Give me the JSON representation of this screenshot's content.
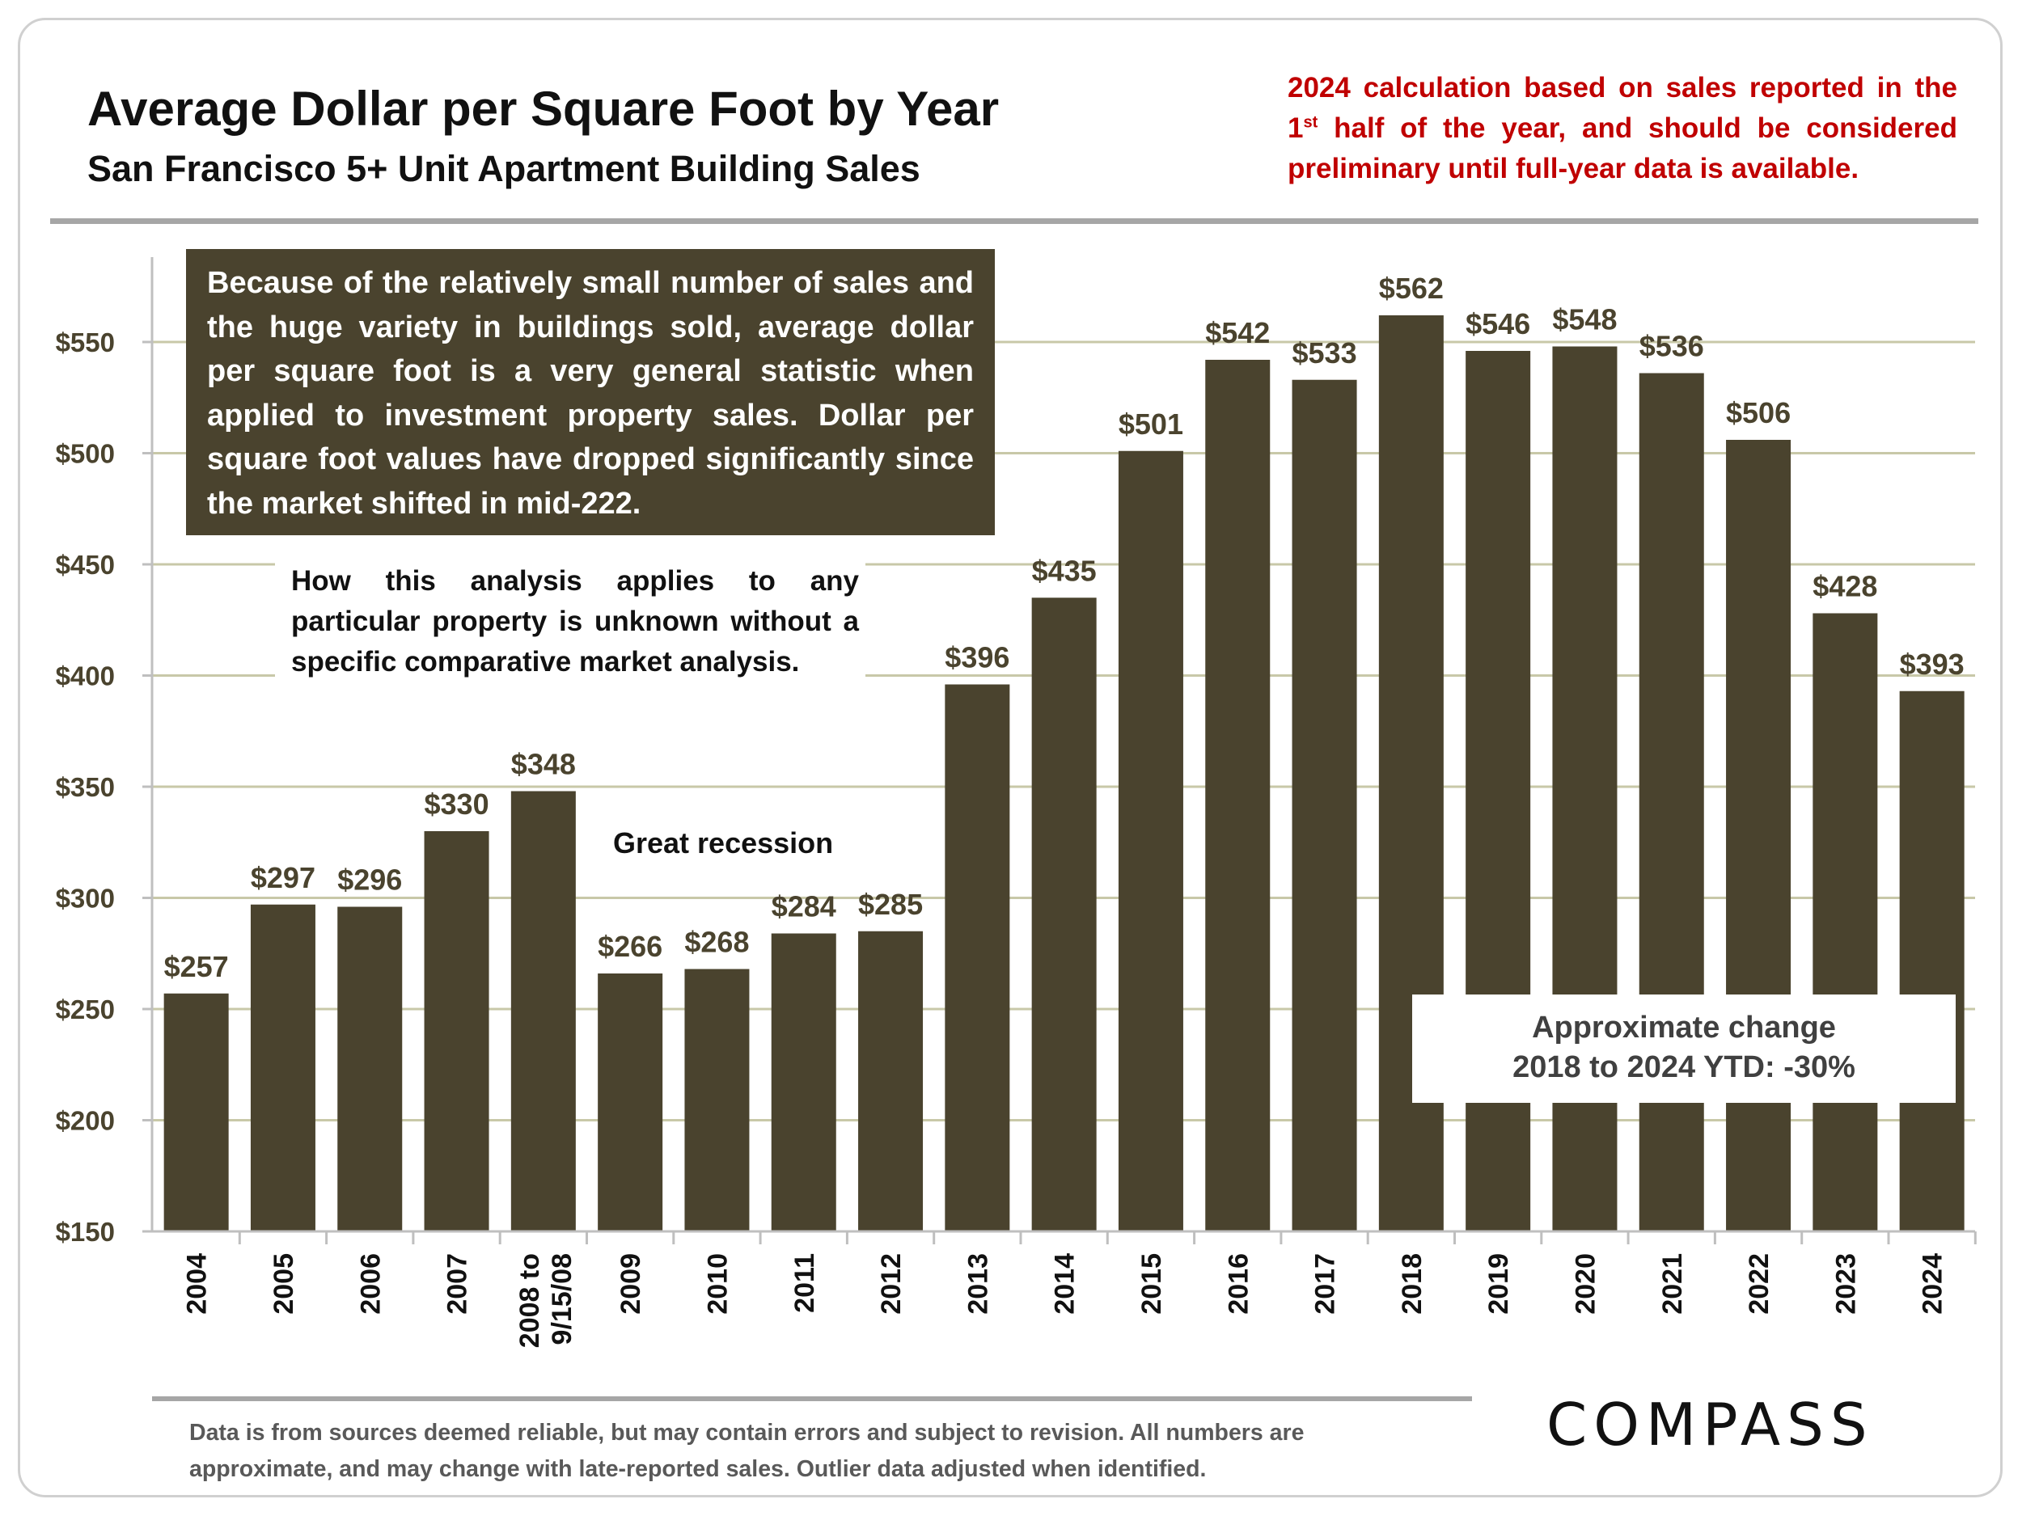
{
  "header": {
    "title": "Average Dollar per Square Foot by Year",
    "subtitle": "San Francisco 5+ Unit Apartment Building Sales",
    "prelim_lead": "2024 calculation based on sales reported in the 1",
    "prelim_sup": "st",
    "prelim_rest": " half of the year, and should be considered preliminary until full-year data is available."
  },
  "notes": {
    "dark": "Because of the relatively small number of sales and the huge variety in buildings sold, average dollar per square foot is a very general statistic when applied to investment property sales. Dollar per square foot values have dropped significantly since the market shifted in mid-222.",
    "light": "How this analysis applies to any particular property is unknown without a specific comparative market analysis.",
    "recession": "Great recession",
    "change_line1": "Approximate change",
    "change_line2": "2018 to 2024 YTD: -30%"
  },
  "footer": {
    "disclaimer_line1": "Data is from sources deemed reliable, but may contain errors and subject to revision. All numbers are",
    "disclaimer_line2": "approximate, and may change with late-reported sales.  Outlier data adjusted when identified.",
    "logo_text": "COMPASS"
  },
  "colors": {
    "bar": "#4a432e",
    "gridline": "#c8c8a8",
    "axis_label": "#4a432e",
    "prelim_text": "#c00000"
  },
  "chart_data": {
    "type": "bar",
    "categories": [
      "2004",
      "2005",
      "2006",
      "2007",
      "2008 to 9/15/08",
      "2009",
      "2010",
      "2011",
      "2012",
      "2013",
      "2014",
      "2015",
      "2016",
      "2017",
      "2018",
      "2019",
      "2020",
      "2021",
      "2022",
      "2023",
      "2024"
    ],
    "values": [
      257,
      297,
      296,
      330,
      348,
      266,
      268,
      284,
      285,
      396,
      435,
      501,
      542,
      533,
      562,
      546,
      548,
      536,
      506,
      428,
      393
    ],
    "data_labels": [
      "$257",
      "$297",
      "$296",
      "$330",
      "$348",
      "$266",
      "$268",
      "$284",
      "$285",
      "$396",
      "$435",
      "$501",
      "$542",
      "$533",
      "$562",
      "$546",
      "$548",
      "$536",
      "$506",
      "$428",
      "$393"
    ],
    "ylim": [
      150,
      600
    ],
    "yticks": [
      150,
      200,
      250,
      300,
      350,
      400,
      450,
      500,
      550
    ],
    "ytick_labels": [
      "$150",
      "$200",
      "$250",
      "$300",
      "$350",
      "$400",
      "$450",
      "$500",
      "$550"
    ],
    "xlabel": "",
    "ylabel": "",
    "grid": true
  }
}
